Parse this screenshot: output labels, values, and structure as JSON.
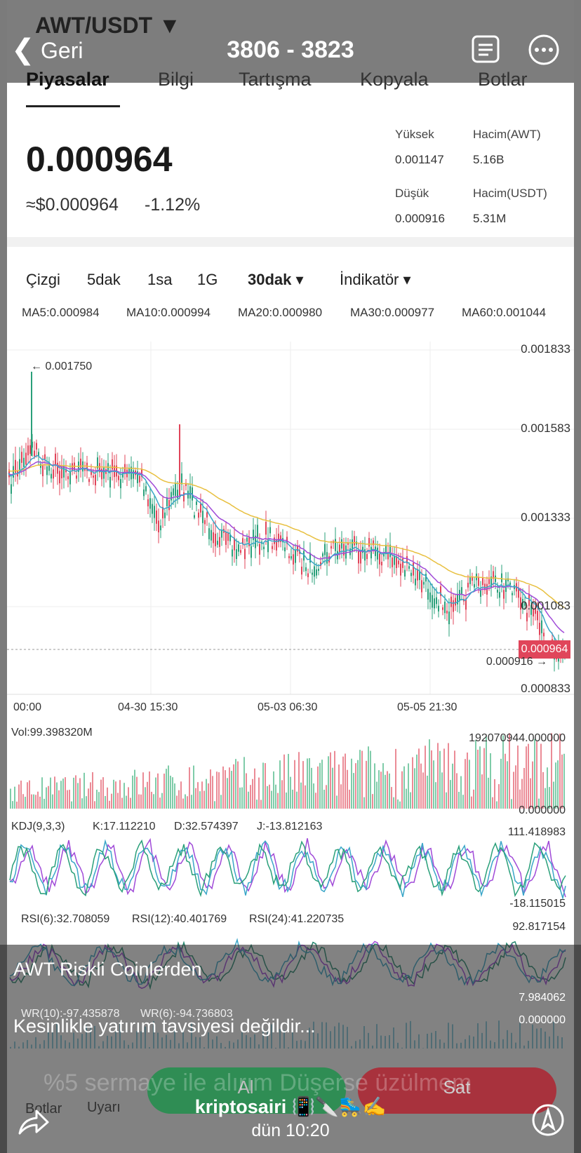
{
  "story_header": {
    "back": "Geri",
    "title": "3806 - 3823"
  },
  "app_header": {
    "pair": "AWT/USDT ▼"
  },
  "tabs": [
    "Piyasalar",
    "Bilgi",
    "Tartışma",
    "Kopyala",
    "Botlar"
  ],
  "price": {
    "last": "0.000964",
    "fiat": "≈$0.000964",
    "change": "-1.12%"
  },
  "stats": [
    {
      "label": "Yüksek",
      "value": "0.001147"
    },
    {
      "label": "Hacim(AWT)",
      "value": "5.16B"
    },
    {
      "label": "Düşük",
      "value": "0.000916"
    },
    {
      "label": "Hacim(USDT)",
      "value": "5.31M"
    }
  ],
  "intervals": [
    "Çizgi",
    "5dak",
    "1sa",
    "1G",
    "30dak ▾",
    "İndikatör ▾"
  ],
  "ma": [
    "MA5:0.000984",
    "MA10:0.000994",
    "MA20:0.000980",
    "MA30:0.000977",
    "MA60:0.001044"
  ],
  "price_axis": [
    "0.001833",
    "0.001583",
    "0.001333",
    "0.001083",
    "0.000833"
  ],
  "current_price_tag": "0.000964",
  "high_marker": "← 0.001750",
  "low_marker": "0.000916 →",
  "time_axis": [
    "00:00",
    "04-30 15:30",
    "05-03 06:30",
    "05-05 21:30"
  ],
  "volume": {
    "label": "Vol:99.398320M",
    "max": "192070944.000000",
    "min": "0.000000"
  },
  "kdj": {
    "label": "KDJ(9,3,3)",
    "k": "K:17.112210",
    "d": "D:32.574397",
    "j": "J:-13.812163",
    "max": "111.418983",
    "min": "-18.115015"
  },
  "rsi": {
    "labels": [
      "RSI(6):32.708059",
      "RSI(12):40.401769",
      "RSI(24):41.220735"
    ],
    "max": "92.817154",
    "min": "7.984062"
  },
  "wr": {
    "labels": [
      "WR(10):-97.435878",
      "WR(6):-94.736803"
    ],
    "max": "0.000000"
  },
  "bottom_bar": {
    "bots": "Botlar",
    "alert": "Uyarı",
    "buy": "Al",
    "sell": "Sat"
  },
  "overlay_text": "%5 sermaye ile alırım Düşerse üzülmem",
  "story_caption": [
    "AWT Riskli Coinlerden",
    "Kesinlikle yatırım tavsiyesi değildir..."
  ],
  "story_footer": {
    "user": "kriptosairi 📳🔪🛼✍️",
    "time": "dün 10:20"
  }
}
